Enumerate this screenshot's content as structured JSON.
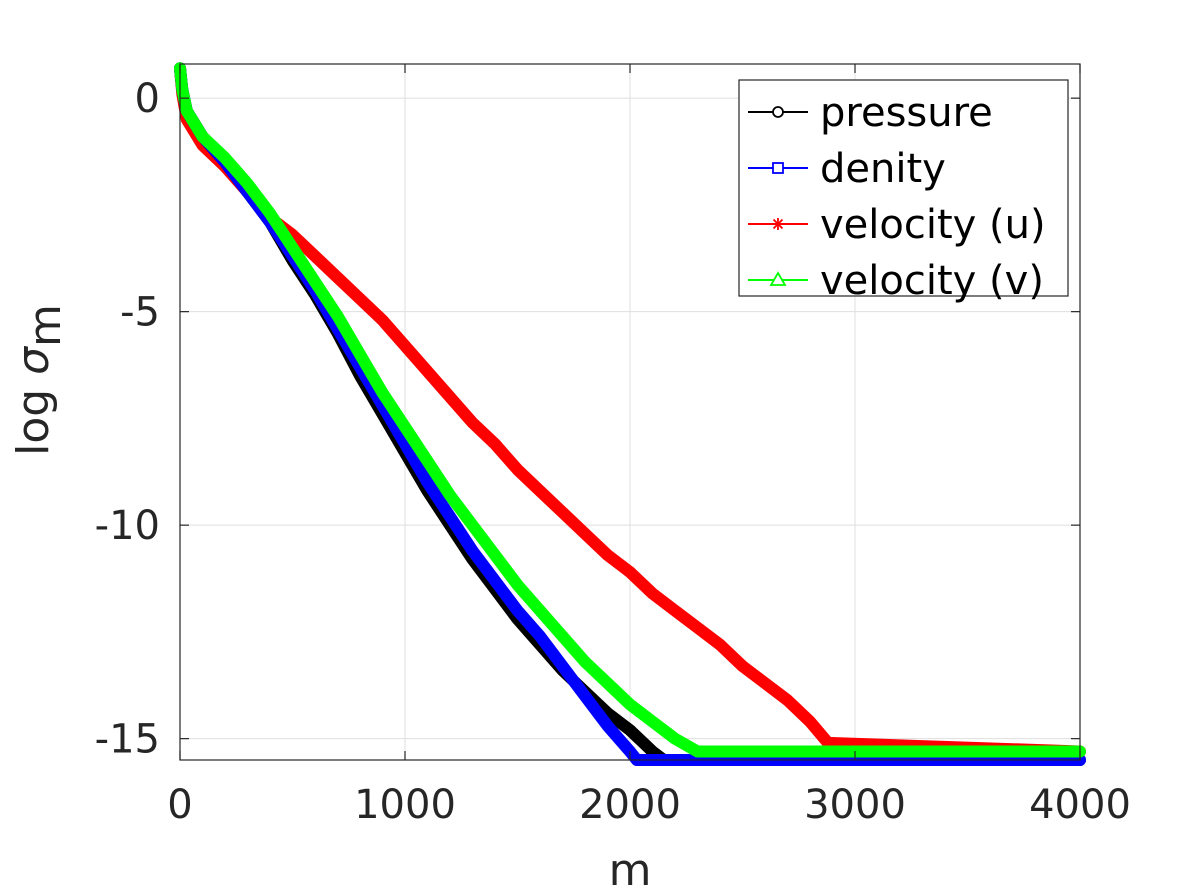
{
  "chart_data": {
    "type": "line",
    "title": "",
    "xlabel": "m",
    "ylabel_prefix": "log ",
    "ylabel_symbol": "σ",
    "ylabel_subscript": "m",
    "xlim": [
      0,
      4000
    ],
    "ylim": [
      -15.5,
      0.8
    ],
    "xticks": [
      0,
      1000,
      2000,
      3000,
      4000
    ],
    "xtick_labels": [
      "0",
      "1000",
      "2000",
      "3000",
      "4000"
    ],
    "yticks": [
      0,
      -5,
      -10,
      -15
    ],
    "ytick_labels": [
      "0",
      "-5",
      "-10",
      "-15"
    ],
    "grid": true,
    "legend_position": "top-right",
    "series": [
      {
        "name": "pressure",
        "color": "#000000",
        "marker": "circle",
        "points": [
          [
            0,
            0.7
          ],
          [
            10,
            0.2
          ],
          [
            30,
            -0.3
          ],
          [
            100,
            -0.9
          ],
          [
            200,
            -1.5
          ],
          [
            300,
            -2.2
          ],
          [
            400,
            -2.9
          ],
          [
            500,
            -3.8
          ],
          [
            600,
            -4.6
          ],
          [
            700,
            -5.5
          ],
          [
            800,
            -6.5
          ],
          [
            900,
            -7.4
          ],
          [
            1000,
            -8.3
          ],
          [
            1100,
            -9.2
          ],
          [
            1200,
            -10.0
          ],
          [
            1300,
            -10.8
          ],
          [
            1400,
            -11.5
          ],
          [
            1500,
            -12.2
          ],
          [
            1600,
            -12.8
          ],
          [
            1700,
            -13.4
          ],
          [
            1800,
            -13.9
          ],
          [
            1900,
            -14.4
          ],
          [
            2000,
            -14.8
          ],
          [
            2100,
            -15.3
          ],
          [
            2150,
            -15.5
          ],
          [
            4000,
            -15.5
          ]
        ]
      },
      {
        "name": "denity",
        "color": "#0000ff",
        "marker": "square",
        "points": [
          [
            0,
            0.7
          ],
          [
            10,
            0.2
          ],
          [
            30,
            -0.3
          ],
          [
            100,
            -0.9
          ],
          [
            200,
            -1.5
          ],
          [
            300,
            -2.2
          ],
          [
            400,
            -2.9
          ],
          [
            500,
            -3.7
          ],
          [
            600,
            -4.5
          ],
          [
            700,
            -5.4
          ],
          [
            800,
            -6.3
          ],
          [
            900,
            -7.2
          ],
          [
            1000,
            -8.1
          ],
          [
            1100,
            -9.0
          ],
          [
            1200,
            -9.8
          ],
          [
            1300,
            -10.6
          ],
          [
            1400,
            -11.3
          ],
          [
            1500,
            -12.0
          ],
          [
            1600,
            -12.6
          ],
          [
            1700,
            -13.3
          ],
          [
            1800,
            -14.0
          ],
          [
            1900,
            -14.7
          ],
          [
            2000,
            -15.3
          ],
          [
            2030,
            -15.5
          ],
          [
            4000,
            -15.5
          ]
        ]
      },
      {
        "name": "velocity (u)",
        "color": "#ff0000",
        "marker": "asterisk",
        "points": [
          [
            0,
            0.7
          ],
          [
            10,
            0.1
          ],
          [
            30,
            -0.5
          ],
          [
            100,
            -1.1
          ],
          [
            200,
            -1.6
          ],
          [
            300,
            -2.2
          ],
          [
            400,
            -2.8
          ],
          [
            500,
            -3.2
          ],
          [
            600,
            -3.7
          ],
          [
            700,
            -4.2
          ],
          [
            800,
            -4.7
          ],
          [
            900,
            -5.2
          ],
          [
            1000,
            -5.8
          ],
          [
            1100,
            -6.4
          ],
          [
            1200,
            -7.0
          ],
          [
            1300,
            -7.6
          ],
          [
            1400,
            -8.1
          ],
          [
            1500,
            -8.7
          ],
          [
            1600,
            -9.2
          ],
          [
            1700,
            -9.7
          ],
          [
            1800,
            -10.2
          ],
          [
            1900,
            -10.7
          ],
          [
            2000,
            -11.1
          ],
          [
            2100,
            -11.6
          ],
          [
            2200,
            -12.0
          ],
          [
            2300,
            -12.4
          ],
          [
            2400,
            -12.8
          ],
          [
            2500,
            -13.3
          ],
          [
            2600,
            -13.7
          ],
          [
            2700,
            -14.1
          ],
          [
            2800,
            -14.6
          ],
          [
            2880,
            -15.1
          ],
          [
            4000,
            -15.3
          ]
        ]
      },
      {
        "name": "velocity (v)",
        "color": "#00ff00",
        "marker": "triangle",
        "points": [
          [
            0,
            0.7
          ],
          [
            10,
            0.2
          ],
          [
            30,
            -0.3
          ],
          [
            100,
            -0.9
          ],
          [
            200,
            -1.4
          ],
          [
            300,
            -2.0
          ],
          [
            400,
            -2.7
          ],
          [
            500,
            -3.5
          ],
          [
            600,
            -4.3
          ],
          [
            700,
            -5.1
          ],
          [
            800,
            -6.0
          ],
          [
            900,
            -6.9
          ],
          [
            1000,
            -7.7
          ],
          [
            1100,
            -8.5
          ],
          [
            1200,
            -9.3
          ],
          [
            1300,
            -10.0
          ],
          [
            1400,
            -10.7
          ],
          [
            1500,
            -11.4
          ],
          [
            1600,
            -12.0
          ],
          [
            1700,
            -12.6
          ],
          [
            1800,
            -13.2
          ],
          [
            1900,
            -13.7
          ],
          [
            2000,
            -14.2
          ],
          [
            2100,
            -14.6
          ],
          [
            2200,
            -15.0
          ],
          [
            2300,
            -15.3
          ],
          [
            4000,
            -15.3
          ]
        ]
      }
    ]
  }
}
